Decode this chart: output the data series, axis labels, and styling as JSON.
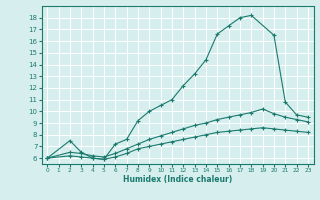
{
  "xlabel": "Humidex (Indice chaleur)",
  "line_color": "#1a7a6e",
  "bg_color": "#d6eeee",
  "grid_color": "#ffffff",
  "xlim": [
    -0.5,
    23.5
  ],
  "ylim": [
    5.5,
    19.0
  ],
  "xticks": [
    0,
    1,
    2,
    3,
    4,
    5,
    6,
    7,
    8,
    9,
    10,
    11,
    12,
    13,
    14,
    15,
    16,
    17,
    18,
    19,
    20,
    21,
    22,
    23
  ],
  "yticks": [
    6,
    7,
    8,
    9,
    10,
    11,
    12,
    13,
    14,
    15,
    16,
    17,
    18
  ],
  "line1_x": [
    0,
    2,
    3,
    4,
    5,
    6,
    7,
    8,
    9,
    10,
    11,
    12,
    13,
    14,
    15,
    16,
    17,
    18,
    20,
    21,
    22,
    23
  ],
  "line1_y": [
    6,
    7.5,
    6.5,
    6.0,
    5.9,
    7.2,
    7.6,
    9.2,
    10.0,
    10.5,
    11.0,
    12.2,
    13.2,
    14.4,
    16.6,
    17.3,
    18.0,
    18.2,
    16.5,
    10.8,
    9.7,
    9.5
  ],
  "line2_x": [
    0,
    2,
    3,
    4,
    5,
    6,
    7,
    8,
    9,
    10,
    11,
    12,
    13,
    14,
    15,
    16,
    17,
    18,
    19,
    20,
    21,
    22,
    23
  ],
  "line2_y": [
    6.0,
    6.5,
    6.4,
    6.2,
    6.1,
    6.4,
    6.8,
    7.2,
    7.6,
    7.9,
    8.2,
    8.5,
    8.8,
    9.0,
    9.3,
    9.5,
    9.7,
    9.9,
    10.2,
    9.8,
    9.5,
    9.3,
    9.1
  ],
  "line3_x": [
    0,
    2,
    3,
    4,
    5,
    6,
    7,
    8,
    9,
    10,
    11,
    12,
    13,
    14,
    15,
    16,
    17,
    18,
    19,
    20,
    21,
    22,
    23
  ],
  "line3_y": [
    6.0,
    6.2,
    6.1,
    6.0,
    5.9,
    6.1,
    6.4,
    6.8,
    7.0,
    7.2,
    7.4,
    7.6,
    7.8,
    8.0,
    8.2,
    8.3,
    8.4,
    8.5,
    8.6,
    8.5,
    8.4,
    8.3,
    8.2
  ]
}
